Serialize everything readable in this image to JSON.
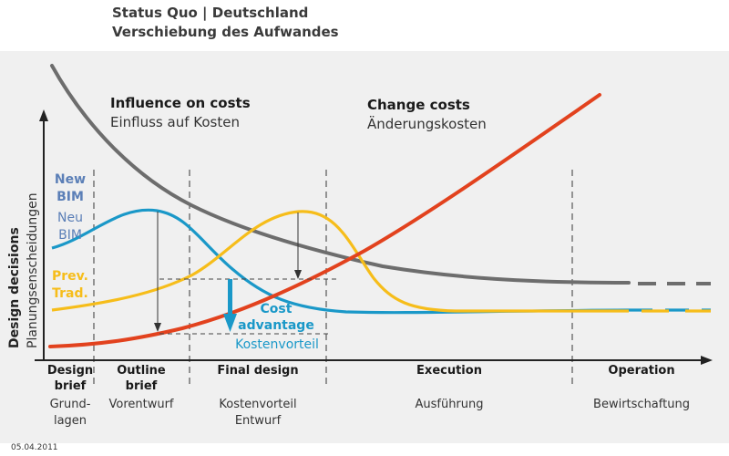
{
  "title_lines": [
    "Status Quo | Deutschland",
    "Verschiebung des Aufwandes"
  ],
  "date": "05.04.2011",
  "colors": {
    "influence": "#6d6d6d",
    "change": "#e2421e",
    "new_bim": "#1a98c8",
    "traditional": "#f6bd1a",
    "new_bim_label": "#5b7fb7",
    "cost_advantage": "#1a98c8",
    "axis": "#222222",
    "phase_divider": "#555555"
  },
  "chart_data": {
    "type": "line",
    "y_axis": {
      "label_lines": [
        "Design decisions",
        "Planungsenscheidungen"
      ]
    },
    "x_axis": {
      "ticks": false
    },
    "phases": [
      {
        "label_en": [
          "Design",
          "brief"
        ],
        "label_de": [
          "Grund-",
          "lagen"
        ]
      },
      {
        "label_en": [
          "Outline",
          "brief"
        ],
        "label_de": [
          "Vorentwurf"
        ]
      },
      {
        "label_en": [
          "Final design"
        ],
        "label_de": [
          "Kostenvorteil",
          "Entwurf"
        ]
      },
      {
        "label_en": [
          "Execution"
        ],
        "label_de": [
          "Ausführung"
        ]
      },
      {
        "label_en": [
          "Operation"
        ],
        "label_de": [
          "Bewirtschaftung"
        ]
      }
    ],
    "series": [
      {
        "key": "influence",
        "shape": "decaying"
      },
      {
        "key": "change",
        "shape": "rising"
      },
      {
        "key": "new_bim",
        "shape": "early-peak"
      },
      {
        "key": "traditional",
        "shape": "late-peak"
      }
    ],
    "annotations": {
      "influence": {
        "en": "Influence on costs",
        "de": "Einfluss auf Kosten"
      },
      "change": {
        "en": "Change costs",
        "de": "Änderungskosten"
      },
      "new_bim": {
        "en": [
          "New",
          "BIM"
        ],
        "de": [
          "Neu",
          "BIM"
        ]
      },
      "traditional": {
        "en": [
          "Prev.",
          "Trad."
        ]
      },
      "cost_advantage": {
        "en": [
          "Cost",
          "advantage"
        ],
        "de": "Kostenvorteil"
      }
    },
    "grid": false,
    "legend": "none"
  }
}
